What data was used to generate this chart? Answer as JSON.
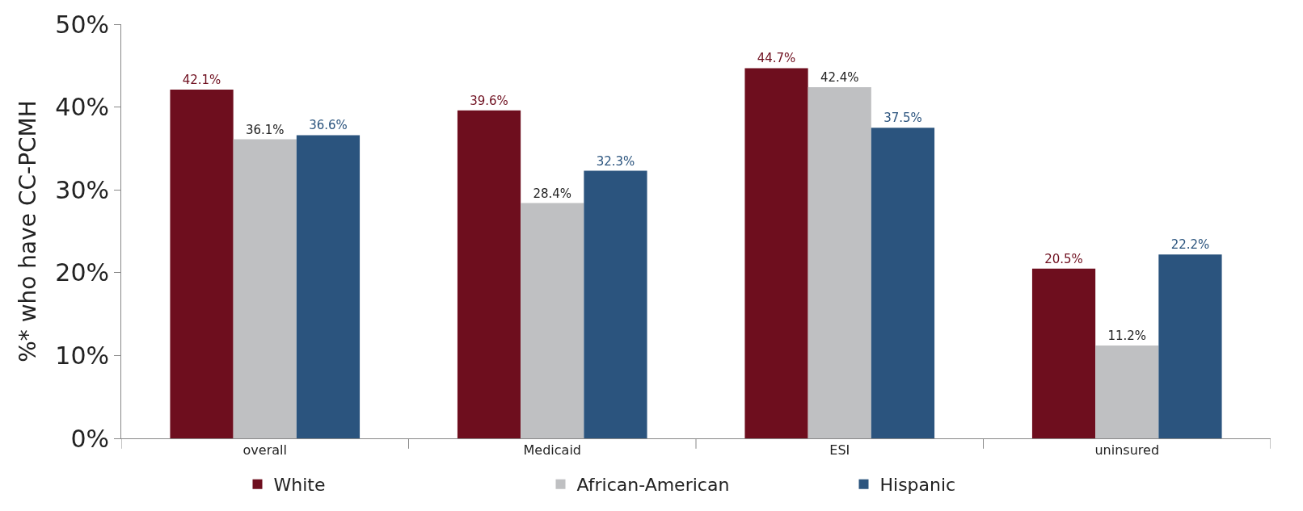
{
  "chart_data": {
    "type": "bar",
    "ylabel": "%* who have CC-PCMH",
    "categories": [
      "overall",
      "Medicaid",
      "ESI",
      "uninsured"
    ],
    "series": [
      {
        "name": "White",
        "color": "#6e0e1e",
        "values": [
          42.1,
          39.6,
          44.7,
          20.5
        ],
        "value_labels": [
          "42.1%",
          "39.6%",
          "44.7%",
          "20.5%"
        ]
      },
      {
        "name": "African-American",
        "color": "#bfc0c2",
        "values": [
          36.1,
          28.4,
          42.4,
          11.2
        ],
        "value_labels": [
          "36.1%",
          "28.4%",
          "42.4%",
          "11.2%"
        ]
      },
      {
        "name": "Hispanic",
        "color": "#2b547e",
        "values": [
          36.6,
          32.3,
          37.5,
          22.2
        ],
        "value_labels": [
          "36.6%",
          "32.3%",
          "37.5%",
          "22.2%"
        ]
      }
    ],
    "ylim": [
      0,
      50
    ],
    "yticks": [
      {
        "value": 0,
        "label": "0%"
      },
      {
        "value": 10,
        "label": "10%"
      },
      {
        "value": 20,
        "label": "20%"
      },
      {
        "value": 30,
        "label": "30%"
      },
      {
        "value": 40,
        "label": "40%"
      },
      {
        "value": 50,
        "label": "50%"
      }
    ],
    "legend": "bottom"
  }
}
